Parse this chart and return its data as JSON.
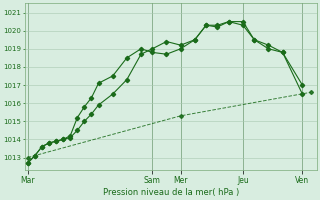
{
  "bg_color": "#d8ede0",
  "grid_color": "#a8c8b0",
  "line_color": "#1a6b1a",
  "title": "Pression niveau de la mer( hPa )",
  "ylim": [
    1012.3,
    1021.5
  ],
  "yticks": [
    1013,
    1014,
    1015,
    1016,
    1017,
    1018,
    1019,
    1020,
    1021
  ],
  "day_labels": [
    "Mar",
    "Sam",
    "Mer",
    "Jeu",
    "Ven"
  ],
  "day_positions": [
    0.0,
    0.44,
    0.54,
    0.76,
    0.97
  ],
  "vline_positions": [
    0.0,
    0.44,
    0.54,
    0.76,
    0.97
  ],
  "xlim": [
    -0.01,
    1.02
  ],
  "line1_x": [
    0.0,
    0.025,
    0.05,
    0.075,
    0.1,
    0.125,
    0.15,
    0.175,
    0.2,
    0.225,
    0.25,
    0.3,
    0.35,
    0.4,
    0.44,
    0.49,
    0.54,
    0.59,
    0.63,
    0.67,
    0.71,
    0.76,
    0.8,
    0.85,
    0.9,
    0.97
  ],
  "line1_y": [
    1012.7,
    1013.1,
    1013.6,
    1013.8,
    1013.9,
    1014.0,
    1014.2,
    1015.2,
    1015.8,
    1016.3,
    1017.1,
    1017.5,
    1018.5,
    1019.0,
    1018.8,
    1018.7,
    1019.0,
    1019.5,
    1020.3,
    1020.3,
    1020.5,
    1020.5,
    1019.5,
    1019.0,
    1018.8,
    1016.5
  ],
  "line2_x": [
    0.0,
    0.025,
    0.05,
    0.075,
    0.1,
    0.125,
    0.15,
    0.175,
    0.2,
    0.225,
    0.25,
    0.3,
    0.35,
    0.4,
    0.44,
    0.49,
    0.54,
    0.59,
    0.63,
    0.67,
    0.71,
    0.76,
    0.8,
    0.85,
    0.9,
    0.97
  ],
  "line2_y": [
    1012.7,
    1013.1,
    1013.6,
    1013.8,
    1013.9,
    1014.0,
    1014.1,
    1014.5,
    1015.0,
    1015.4,
    1015.9,
    1016.5,
    1017.3,
    1018.7,
    1019.0,
    1019.4,
    1019.2,
    1019.5,
    1020.3,
    1020.2,
    1020.5,
    1020.3,
    1019.5,
    1019.2,
    1018.8,
    1017.0
  ],
  "line3_x": [
    0.0,
    0.54,
    1.0
  ],
  "line3_y": [
    1013.0,
    1015.3,
    1016.6
  ]
}
